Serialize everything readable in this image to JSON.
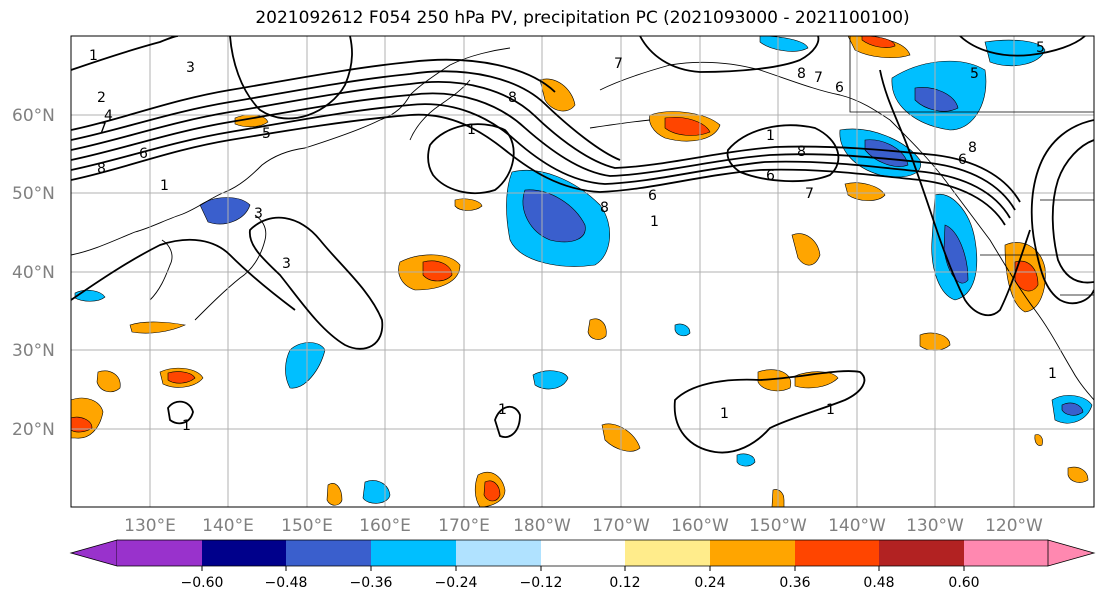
{
  "title": "2021092612 F054 250 hPa PV, precipitation PC (2021093000 - 2021100100)",
  "map": {
    "lat_labels": [
      "60°N",
      "50°N",
      "40°N",
      "30°N",
      "20°N"
    ],
    "lon_labels": [
      "130°E",
      "140°E",
      "150°E",
      "160°E",
      "170°E",
      "180°W",
      "170°W",
      "160°W",
      "150°W",
      "140°W",
      "130°W",
      "120°W"
    ],
    "contour_labels": [
      "1",
      "2",
      "3",
      "4",
      "5",
      "6",
      "7",
      "8"
    ],
    "colors": {
      "land": "#ffffff",
      "grid": "#b0b0b0",
      "contour": "#000000",
      "tick_label": "#808080"
    }
  },
  "colorbar": {
    "tick_labels": [
      "−0.60",
      "−0.48",
      "−0.36",
      "−0.24",
      "−0.12",
      "0.12",
      "0.24",
      "0.36",
      "0.48",
      "0.60"
    ],
    "colors": [
      "#9932cc",
      "#00008b",
      "#3a5fcd",
      "#00bfff",
      "#b0e2ff",
      "#ffffff",
      "#ffec8b",
      "#ffa500",
      "#ff4500",
      "#b22222",
      "#ff88b0"
    ]
  }
}
